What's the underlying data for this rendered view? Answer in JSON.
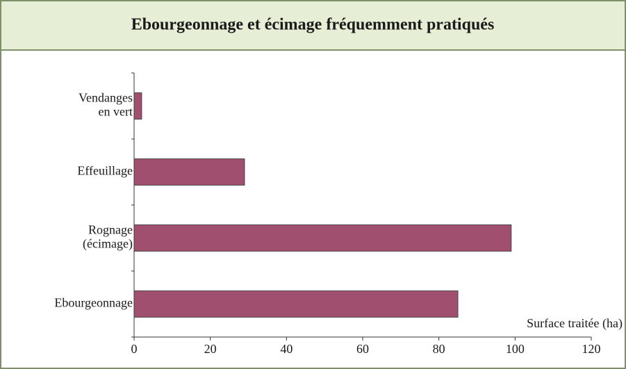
{
  "chart_data": {
    "type": "hbar",
    "title": "Ebourgeonnage et écimage fréquemment pratiqués",
    "x_label": "Surface traitée (ha)",
    "categories": [
      "Vendanges\nen vert",
      "Effeuillage",
      "Rognage\n(écimage)",
      "Ebourgeonnage"
    ],
    "values": [
      2,
      29,
      99,
      85
    ],
    "color": "#a0506e",
    "xlim": [
      0,
      120
    ],
    "xticks": [
      0,
      20,
      40,
      60,
      80,
      100,
      120
    ]
  }
}
